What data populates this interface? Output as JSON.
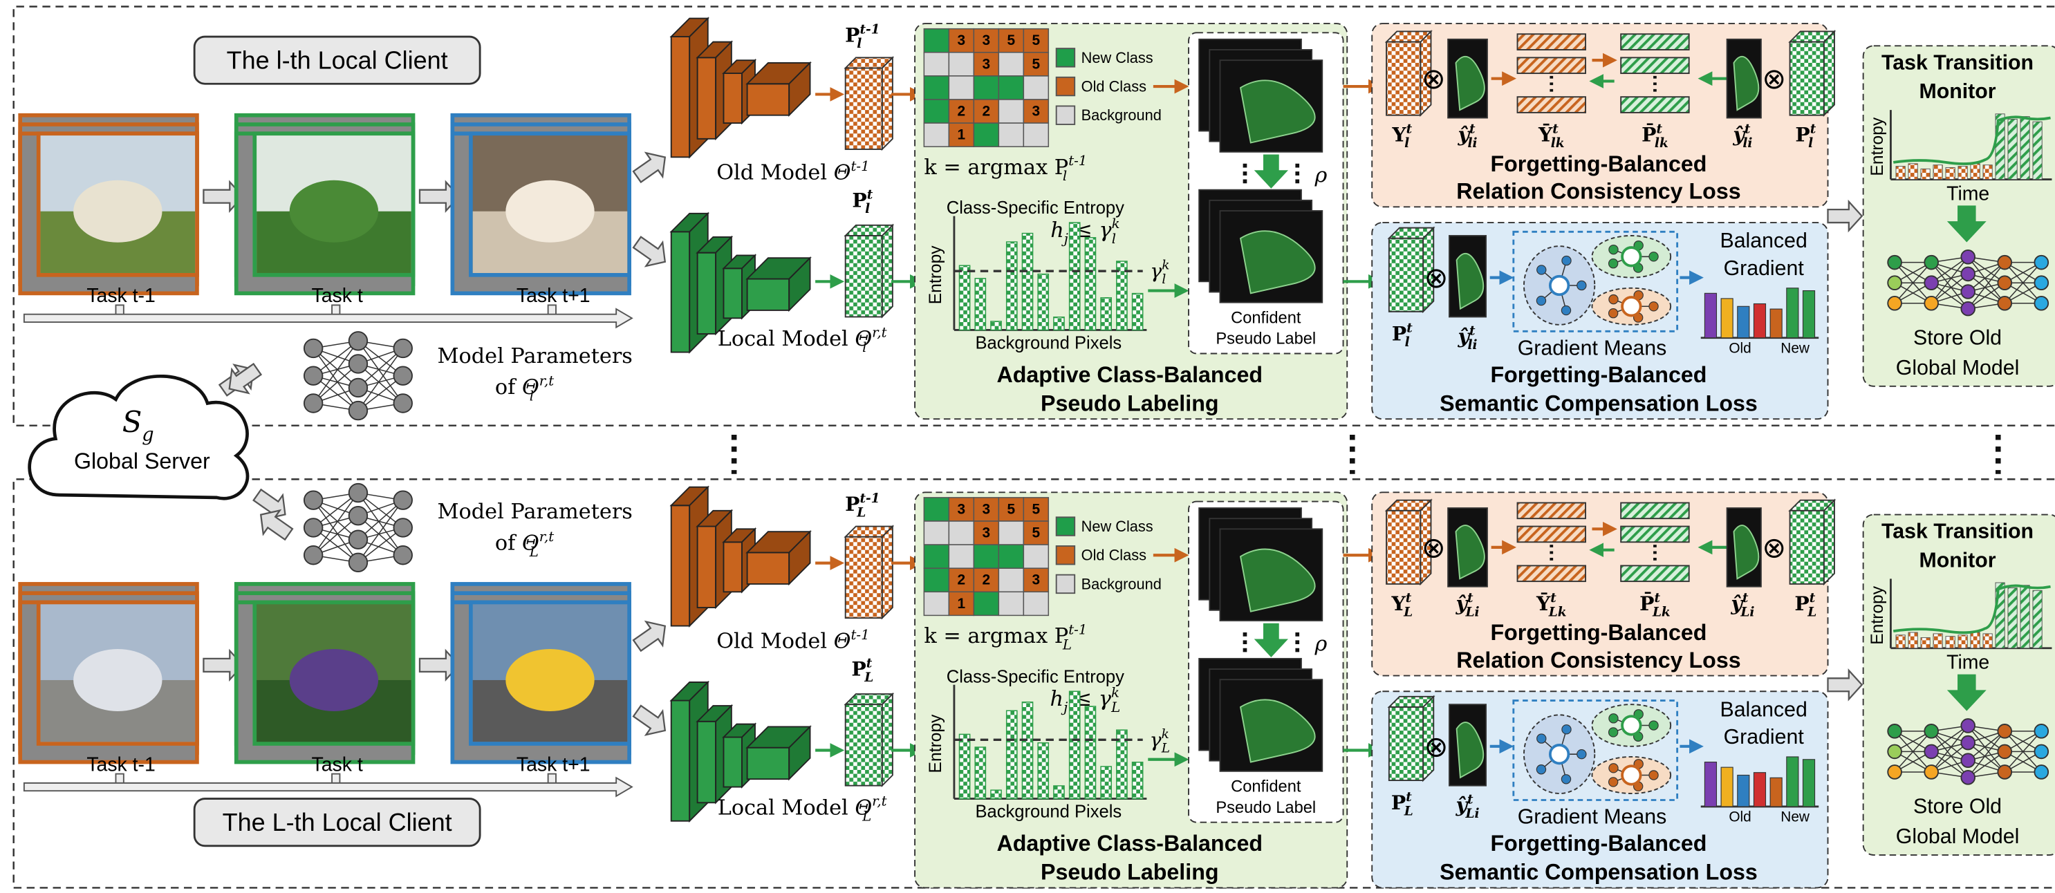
{
  "server": {
    "symbol": [
      {
        "t": "S",
        "sub": "g"
      }
    ],
    "label": "Global Server"
  },
  "clients": [
    {
      "title": "The l-th Local Client",
      "tasks": [
        "Task t-1",
        "Task t",
        "Task t+1"
      ],
      "params": [
        [
          {
            "t": "Model Parameters"
          }
        ],
        [
          {
            "t": "of "
          },
          {
            "t": "Θ",
            "sub": "l",
            "sup": "r,t"
          }
        ]
      ],
      "old_model": [
        {
          "t": "Old Model "
        },
        {
          "t": "Θ",
          "sup": "t-1"
        }
      ],
      "local_model": [
        {
          "t": "Local Model "
        },
        {
          "t": "Θ",
          "sub": "l",
          "sup": "r,t"
        }
      ],
      "p_old": [
        {
          "t": "P",
          "sub": "l",
          "sup": "t-1"
        }
      ],
      "p_new": [
        {
          "t": "P",
          "sub": "l",
          "sup": "t"
        }
      ],
      "grid": [
        [
          null,
          "3",
          "3",
          "5",
          "5"
        ],
        [
          null,
          null,
          "3",
          null,
          "5"
        ],
        [
          null,
          null,
          null,
          null,
          null
        ],
        [
          null,
          "2",
          "2",
          null,
          "3"
        ],
        [
          null,
          "1",
          null,
          null,
          null
        ]
      ],
      "legend": [
        "New Class",
        "Old Class",
        "Background"
      ],
      "argmax": [
        {
          "t": "k = argmax "
        },
        {
          "t": "P",
          "sub": "l",
          "sup": "t-1"
        }
      ],
      "entropy_title": "Class-Specific Entropy",
      "threshold": [
        {
          "t": "h",
          "sub": "j"
        },
        {
          "t": " ≤ γ",
          "sub": "l",
          "sup": "k"
        }
      ],
      "gamma": [
        {
          "t": "γ",
          "sub": "l",
          "sup": "k"
        }
      ],
      "entropy_axis": "Entropy",
      "pixels_axis": "Background Pixels",
      "rho": "ρ",
      "confident": [
        "Confident",
        "Pseudo Label"
      ],
      "pseudo_title": [
        "Adaptive Class-Balanced",
        "Pseudo Labeling"
      ],
      "relation_symbols": [
        [
          {
            "t": "Y",
            "sub": "l",
            "sup": "t"
          }
        ],
        [
          {
            "t": "ŷ",
            "sub": "li",
            "sup": "t"
          }
        ],
        [
          {
            "t": "Ȳ",
            "sub": "lk",
            "sup": "t"
          }
        ],
        [
          {
            "t": "P̄",
            "sub": "lk",
            "sup": "t"
          }
        ],
        [
          {
            "t": "ŷ",
            "sub": "li",
            "sup": "t"
          }
        ],
        [
          {
            "t": "P",
            "sub": "l",
            "sup": "t"
          }
        ]
      ],
      "otimes": "⊗",
      "relation_title": [
        "Forgetting-Balanced",
        "Relation Consistency Loss"
      ],
      "semantic_symbols": [
        [
          {
            "t": "P",
            "sub": "l",
            "sup": "t"
          }
        ],
        [
          {
            "t": "ŷ",
            "sub": "li",
            "sup": "t"
          }
        ]
      ],
      "gradient_means": "Gradient Means",
      "balanced": [
        "Balanced",
        "Gradient"
      ],
      "bar_axis": [
        "Old",
        "New"
      ],
      "semantic_title": [
        "Forgetting-Balanced",
        "Semantic Compensation Loss"
      ],
      "monitor": {
        "title": [
          "Task Transition",
          "Monitor"
        ],
        "y": "Entropy",
        "x": "Time",
        "store": [
          "Store Old",
          "Global Model"
        ]
      }
    },
    {
      "title": "The L-th Local Client",
      "tasks": [
        "Task t-1",
        "Task t",
        "Task t+1"
      ],
      "params": [
        [
          {
            "t": "Model Parameters"
          }
        ],
        [
          {
            "t": "of "
          },
          {
            "t": "Θ",
            "sub": "L",
            "sup": "r,t"
          }
        ]
      ],
      "old_model": [
        {
          "t": "Old Model "
        },
        {
          "t": "Θ",
          "sup": "t-1"
        }
      ],
      "local_model": [
        {
          "t": "Local Model "
        },
        {
          "t": "Θ",
          "sub": "L",
          "sup": "r,t"
        }
      ],
      "p_old": [
        {
          "t": "P",
          "sub": "L",
          "sup": "t-1"
        }
      ],
      "p_new": [
        {
          "t": "P",
          "sub": "L",
          "sup": "t"
        }
      ],
      "grid": [
        [
          null,
          "3",
          "3",
          "5",
          "5"
        ],
        [
          null,
          null,
          "3",
          null,
          "5"
        ],
        [
          null,
          null,
          null,
          null,
          null
        ],
        [
          null,
          "2",
          "2",
          null,
          "3"
        ],
        [
          null,
          "1",
          null,
          null,
          null
        ]
      ],
      "legend": [
        "New Class",
        "Old Class",
        "Background"
      ],
      "argmax": [
        {
          "t": "k = argmax "
        },
        {
          "t": "P",
          "sub": "L",
          "sup": "t-1"
        }
      ],
      "entropy_title": "Class-Specific Entropy",
      "threshold": [
        {
          "t": "h",
          "sub": "j"
        },
        {
          "t": " ≤ γ",
          "sub": "L",
          "sup": "k"
        }
      ],
      "gamma": [
        {
          "t": "γ",
          "sub": "L",
          "sup": "k"
        }
      ],
      "entropy_axis": "Entropy",
      "pixels_axis": "Background Pixels",
      "rho": "ρ",
      "confident": [
        "Confident",
        "Pseudo Label"
      ],
      "pseudo_title": [
        "Adaptive Class-Balanced",
        "Pseudo Labeling"
      ],
      "relation_symbols": [
        [
          {
            "t": "Y",
            "sub": "L",
            "sup": "t"
          }
        ],
        [
          {
            "t": "ŷ",
            "sub": "Li",
            "sup": "t"
          }
        ],
        [
          {
            "t": "Ȳ",
            "sub": "Lk",
            "sup": "t"
          }
        ],
        [
          {
            "t": "P̄",
            "sub": "Lk",
            "sup": "t"
          }
        ],
        [
          {
            "t": "ŷ",
            "sub": "Li",
            "sup": "t"
          }
        ],
        [
          {
            "t": "P",
            "sub": "L",
            "sup": "t"
          }
        ]
      ],
      "otimes": "⊗",
      "relation_title": [
        "Forgetting-Balanced",
        "Relation Consistency Loss"
      ],
      "semantic_symbols": [
        [
          {
            "t": "P",
            "sub": "L",
            "sup": "t"
          }
        ],
        [
          {
            "t": "ŷ",
            "sub": "Li",
            "sup": "t"
          }
        ]
      ],
      "gradient_means": "Gradient Means",
      "balanced": [
        "Balanced",
        "Gradient"
      ],
      "bar_axis": [
        "Old",
        "New"
      ],
      "semantic_title": [
        "Forgetting-Balanced",
        "Semantic Compensation Loss"
      ],
      "monitor": {
        "title": [
          "Task Transition",
          "Monitor"
        ],
        "y": "Entropy",
        "x": "Time",
        "store": [
          "Store Old",
          "Global Model"
        ]
      }
    }
  ]
}
